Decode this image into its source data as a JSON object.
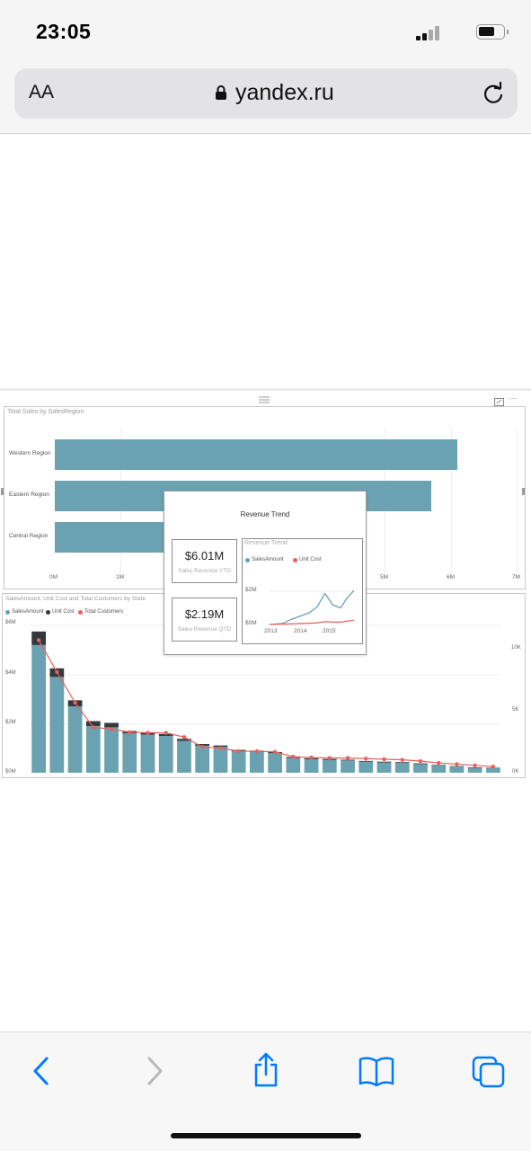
{
  "status_bar": {
    "time": "23:05"
  },
  "browser": {
    "text_size_label": "AA",
    "url": "yandex.ru",
    "toolbar": [
      "back-icon",
      "forward-icon",
      "share-icon",
      "bookmarks-icon",
      "tabs-icon"
    ]
  },
  "colors": {
    "accent": "#007aff",
    "sales_amount": "#6aa2b2",
    "unit_cost": "#333a3f",
    "total_customers": "#e8615a"
  },
  "dashboard": {
    "sales_by_region": {
      "title": "Total Sales by SalesRegion",
      "x_ticks": [
        "0M",
        "1M",
        "5M",
        "6M",
        "7M"
      ]
    },
    "tooltip": {
      "title": "Revenue Trend",
      "ytd_value": "$6.01M",
      "ytd_label": "Sales Revenue YTD",
      "qtd_value": "$2.19M",
      "qtd_label": "Sales Revenue QTD",
      "mini_title": "Revenue Trend",
      "legend_sales": "SalesAmount",
      "legend_cost": "Unit Cost",
      "y_ticks": [
        "$2M",
        "$0M"
      ],
      "x_ticks": [
        "2013",
        "2014",
        "2015"
      ]
    },
    "state_chart": {
      "title": "SalesAmount, Unit Cost and Total Customers by State",
      "legend": [
        "SalesAmount",
        "Unit Cost",
        "Total Customers"
      ],
      "left_ticks": [
        "$6M",
        "$4M",
        "$2M",
        "$0M"
      ],
      "right_ticks": [
        "10K",
        "5K",
        "0K"
      ]
    }
  },
  "chart_data": [
    {
      "type": "bar",
      "orientation": "horizontal",
      "title": "Total Sales by SalesRegion",
      "categories": [
        "Western Region",
        "Eastern Region",
        "Central Region"
      ],
      "values": [
        6.1,
        5.7,
        3.1
      ],
      "unit": "M",
      "xlim": [
        0,
        7
      ]
    },
    {
      "type": "line",
      "title": "Revenue Trend",
      "x": [
        2012.8,
        2013.3,
        2013.6,
        2014.0,
        2014.3,
        2014.6,
        2014.9,
        2015.2,
        2015.5,
        2015.7,
        2016.0
      ],
      "series": [
        {
          "name": "SalesAmount",
          "values": [
            0.0,
            0.05,
            0.25,
            0.45,
            0.6,
            0.9,
            1.6,
            1.0,
            0.85,
            1.3,
            1.75
          ]
        },
        {
          "name": "Unit Cost",
          "values": [
            0.0,
            0.02,
            0.03,
            0.05,
            0.06,
            0.08,
            0.15,
            0.12,
            0.12,
            0.16,
            0.22
          ]
        }
      ],
      "ylim": [
        0,
        2.5
      ]
    },
    {
      "type": "bar",
      "title": "SalesAmount, Unit Cost and Total Customers by State",
      "series": [
        {
          "name": "SalesAmount",
          "values": [
            5.2,
            3.9,
            2.7,
            1.9,
            1.85,
            1.6,
            1.55,
            1.5,
            1.3,
            1.1,
            1.05,
            0.88,
            0.85,
            0.8,
            0.6,
            0.55,
            0.52,
            0.5,
            0.45,
            0.42,
            0.4,
            0.35,
            0.3,
            0.25,
            0.2,
            0.18
          ]
        },
        {
          "name": "Unit Cost",
          "values": [
            0.55,
            0.35,
            0.25,
            0.2,
            0.18,
            0.1,
            0.1,
            0.08,
            0.08,
            0.07,
            0.06,
            0.05,
            0.05,
            0.04,
            0.04,
            0.04,
            0.04,
            0.03,
            0.03,
            0.03,
            0.03,
            0.03,
            0.02,
            0.02,
            0.02,
            0.02
          ]
        },
        {
          "name": "Total Customers",
          "values": [
            10800,
            8200,
            5700,
            3700,
            3550,
            3300,
            3250,
            3250,
            2900,
            2100,
            2000,
            1750,
            1750,
            1700,
            1300,
            1250,
            1200,
            1200,
            1150,
            1100,
            1050,
            950,
            800,
            700,
            600,
            500
          ]
        }
      ],
      "ylim": [
        0,
        6
      ],
      "y2lim": [
        0,
        12000
      ],
      "y_unit": "$M"
    }
  ]
}
